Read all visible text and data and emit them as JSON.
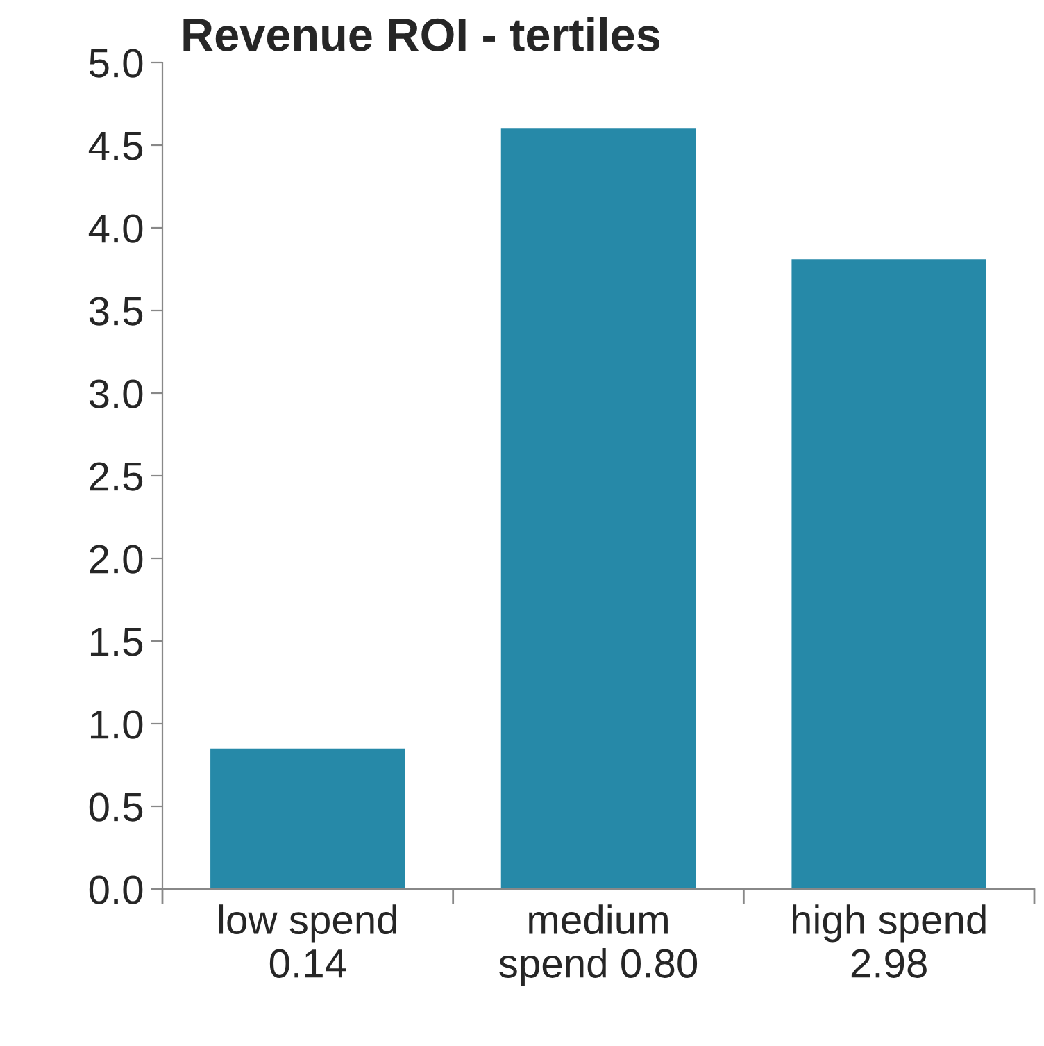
{
  "chart_data": {
    "type": "bar",
    "title": "Revenue ROI - tertiles",
    "categories": [
      "low spend\n0.14",
      "medium\nspend 0.80",
      "high spend\n2.98"
    ],
    "values": [
      0.85,
      4.6,
      3.81
    ],
    "color": "#2689a8",
    "ylim": [
      0,
      5
    ],
    "yticks": [
      {
        "value": 0,
        "label": "0.0"
      },
      {
        "value": 0.5,
        "label": "0.5"
      },
      {
        "value": 1,
        "label": "1.0"
      },
      {
        "value": 1.5,
        "label": "1.5"
      },
      {
        "value": 2,
        "label": "2.0"
      },
      {
        "value": 2.5,
        "label": "2.5"
      },
      {
        "value": 3,
        "label": "3.0"
      },
      {
        "value": 3.5,
        "label": "3.5"
      },
      {
        "value": 4,
        "label": "4.0"
      },
      {
        "value": 4.5,
        "label": "4.5"
      },
      {
        "value": 5,
        "label": "5.0"
      }
    ],
    "grid": false
  }
}
